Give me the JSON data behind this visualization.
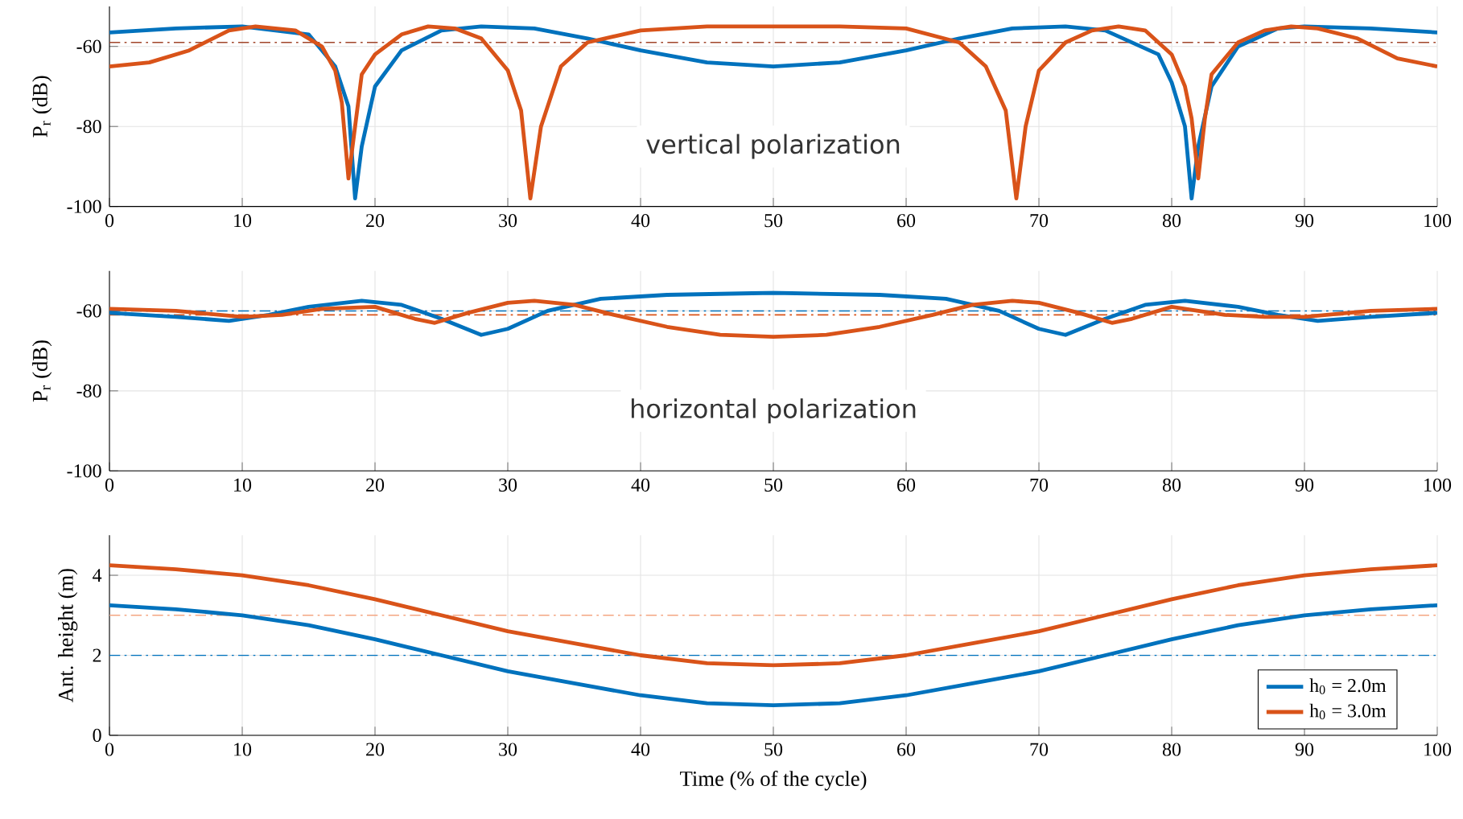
{
  "chart_data": [
    {
      "type": "line",
      "ylabel": "P$_{r}$ (dB)",
      "xlim": [
        0,
        100
      ],
      "ylim": [
        -100,
        -50
      ],
      "xticks": [
        0,
        10,
        20,
        30,
        40,
        50,
        60,
        70,
        80,
        90,
        100
      ],
      "yticks": [
        -100,
        -80,
        -60
      ],
      "grid": true,
      "annotations": [
        "vertical polarization"
      ],
      "series": [
        {
          "color": "#0072bd",
          "x": [
            0,
            5,
            10,
            15,
            17,
            18,
            18.5,
            19,
            20,
            22,
            25,
            28,
            32,
            36,
            40,
            45,
            50,
            55,
            60,
            64,
            68,
            72,
            75,
            79,
            80,
            81,
            81.5,
            82,
            83,
            85,
            88,
            90,
            95,
            100
          ],
          "values": [
            -56.5,
            -55.5,
            -55,
            -57,
            -65,
            -75,
            -98,
            -85,
            -70,
            -61,
            -56,
            -55,
            -55.5,
            -58,
            -61,
            -64,
            -65,
            -64,
            -61,
            -58,
            -55.5,
            -55,
            -56,
            -62,
            -69,
            -80,
            -98,
            -85,
            -70,
            -60,
            -55.5,
            -55,
            -55.5,
            -56.5
          ]
        },
        {
          "color": "#d95319",
          "x": [
            0,
            3,
            6,
            9,
            11,
            14,
            16,
            17,
            17.5,
            18,
            18.5,
            19,
            20,
            22,
            24,
            26,
            28,
            30,
            31,
            31.7,
            32.5,
            34,
            36,
            40,
            45,
            50,
            55,
            60,
            64,
            66,
            67.5,
            68.3,
            69,
            70,
            72,
            74,
            76,
            78,
            80,
            81,
            81.5,
            82,
            82.5,
            83,
            85,
            87,
            89,
            91,
            94,
            97,
            100
          ],
          "values": [
            -65,
            -64,
            -61,
            -56,
            -55,
            -56,
            -60,
            -66,
            -74,
            -93,
            -80,
            -67,
            -62,
            -57,
            -55,
            -55.5,
            -58,
            -66,
            -76,
            -98,
            -80,
            -65,
            -59,
            -56,
            -55,
            -55,
            -55,
            -55.5,
            -59,
            -65,
            -76,
            -98,
            -80,
            -66,
            -59,
            -56,
            -55,
            -56,
            -62,
            -70,
            -78,
            -93,
            -78,
            -67,
            -59,
            -56,
            -55,
            -55.5,
            -58,
            -63,
            -65
          ]
        }
      ],
      "ref_lines": [
        {
          "axis": "y",
          "value": -59,
          "color": "#a0452a",
          "line_style": "dashdot"
        }
      ]
    },
    {
      "type": "line",
      "ylabel": "P$_{r}$ (dB)",
      "xlim": [
        0,
        100
      ],
      "ylim": [
        -100,
        -50
      ],
      "xticks": [
        0,
        10,
        20,
        30,
        40,
        50,
        60,
        70,
        80,
        90,
        100
      ],
      "yticks": [
        -100,
        -80,
        -60
      ],
      "grid": true,
      "annotations": [
        "horizontal polarization"
      ],
      "series": [
        {
          "color": "#0072bd",
          "x": [
            0,
            5,
            9,
            12,
            15,
            19,
            22,
            25,
            28,
            30,
            33,
            37,
            42,
            50,
            58,
            63,
            67,
            70,
            72,
            75,
            78,
            81,
            85,
            88,
            91,
            95,
            100
          ],
          "values": [
            -60.5,
            -61.5,
            -62.5,
            -61,
            -59,
            -57.5,
            -58.5,
            -62,
            -66,
            -64.5,
            -60,
            -57,
            -56,
            -55.5,
            -56,
            -57,
            -60,
            -64.5,
            -66,
            -62,
            -58.5,
            -57.5,
            -59,
            -61,
            -62.5,
            -61.5,
            -60.5
          ]
        },
        {
          "color": "#d95319",
          "x": [
            0,
            5,
            10,
            13,
            16,
            20,
            23,
            24.5,
            27,
            30,
            32,
            35,
            38,
            42,
            46,
            50,
            54,
            58,
            62,
            65,
            68,
            70,
            73,
            75.5,
            77,
            80,
            84,
            87,
            90,
            95,
            100
          ],
          "values": [
            -59.5,
            -60,
            -61.5,
            -61,
            -59.5,
            -59,
            -62,
            -63,
            -60.5,
            -58,
            -57.5,
            -58.5,
            -61,
            -64,
            -66,
            -66.5,
            -66,
            -64,
            -61,
            -58.5,
            -57.5,
            -58,
            -60.5,
            -63,
            -62,
            -59,
            -61,
            -61.5,
            -61.5,
            -60,
            -59.5
          ]
        }
      ],
      "ref_lines": [
        {
          "axis": "y",
          "value": -60,
          "color": "#0072bd",
          "line_style": "dashdot"
        },
        {
          "axis": "y",
          "value": -61,
          "color": "#d95319",
          "line_style": "dashdot"
        }
      ]
    },
    {
      "type": "line",
      "xlabel": "Time (% of the cycle)",
      "ylabel": "Ant. height (m)",
      "xlim": [
        0,
        100
      ],
      "ylim": [
        0,
        5
      ],
      "xticks": [
        0,
        10,
        20,
        30,
        40,
        50,
        60,
        70,
        80,
        90,
        100
      ],
      "yticks": [
        0,
        2,
        4
      ],
      "grid": true,
      "legend": "bottom right",
      "x": [
        0,
        5,
        10,
        15,
        20,
        25,
        30,
        35,
        40,
        45,
        50,
        55,
        60,
        65,
        70,
        75,
        80,
        85,
        90,
        95,
        100
      ],
      "series": [
        {
          "name": "h$_{0}$ = 2.0m",
          "color": "#0072bd",
          "values": [
            3.25,
            3.15,
            3.0,
            2.75,
            2.4,
            2.0,
            1.6,
            1.3,
            1.0,
            0.8,
            0.75,
            0.8,
            1.0,
            1.3,
            1.6,
            2.0,
            2.4,
            2.75,
            3.0,
            3.15,
            3.25
          ]
        },
        {
          "name": "h$_{0}$ = 3.0m",
          "color": "#d95319",
          "values": [
            4.25,
            4.15,
            4.0,
            3.75,
            3.4,
            3.0,
            2.6,
            2.3,
            2.0,
            1.8,
            1.75,
            1.8,
            2.0,
            2.3,
            2.6,
            3.0,
            3.4,
            3.75,
            4.0,
            4.15,
            4.25
          ]
        }
      ],
      "ref_lines": [
        {
          "axis": "y",
          "value": 2,
          "color": "#0072bd",
          "line_style": "dashdot"
        },
        {
          "axis": "y",
          "value": 3,
          "color": "#f4a582",
          "line_style": "dashdot"
        }
      ]
    }
  ]
}
